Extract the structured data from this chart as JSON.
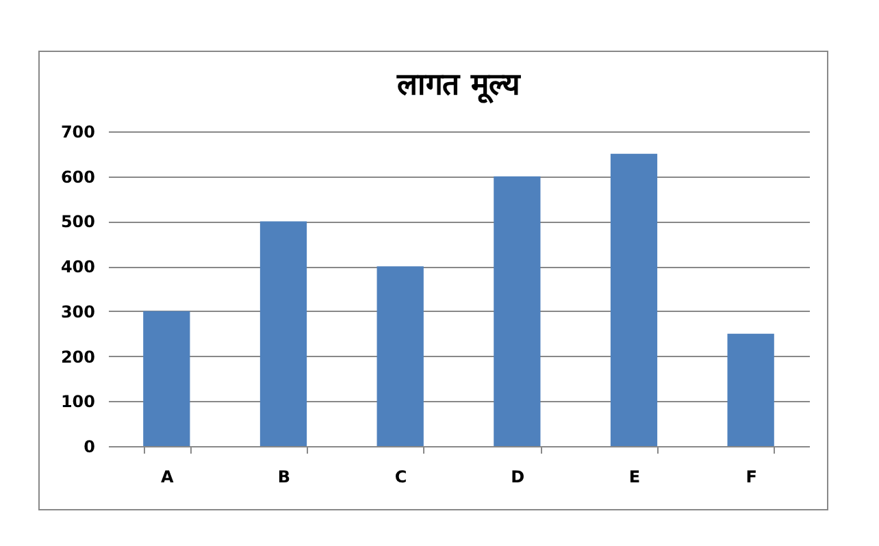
{
  "chart_data": {
    "type": "bar",
    "title": "लागत मूल्य",
    "categories": [
      "A",
      "B",
      "C",
      "D",
      "E",
      "F"
    ],
    "values": [
      300,
      500,
      400,
      600,
      650,
      250
    ],
    "color": "#4f81bd",
    "ylim": [
      0,
      700
    ],
    "yticks": [
      0,
      100,
      200,
      300,
      400,
      500,
      600,
      700
    ],
    "grid": "y"
  }
}
